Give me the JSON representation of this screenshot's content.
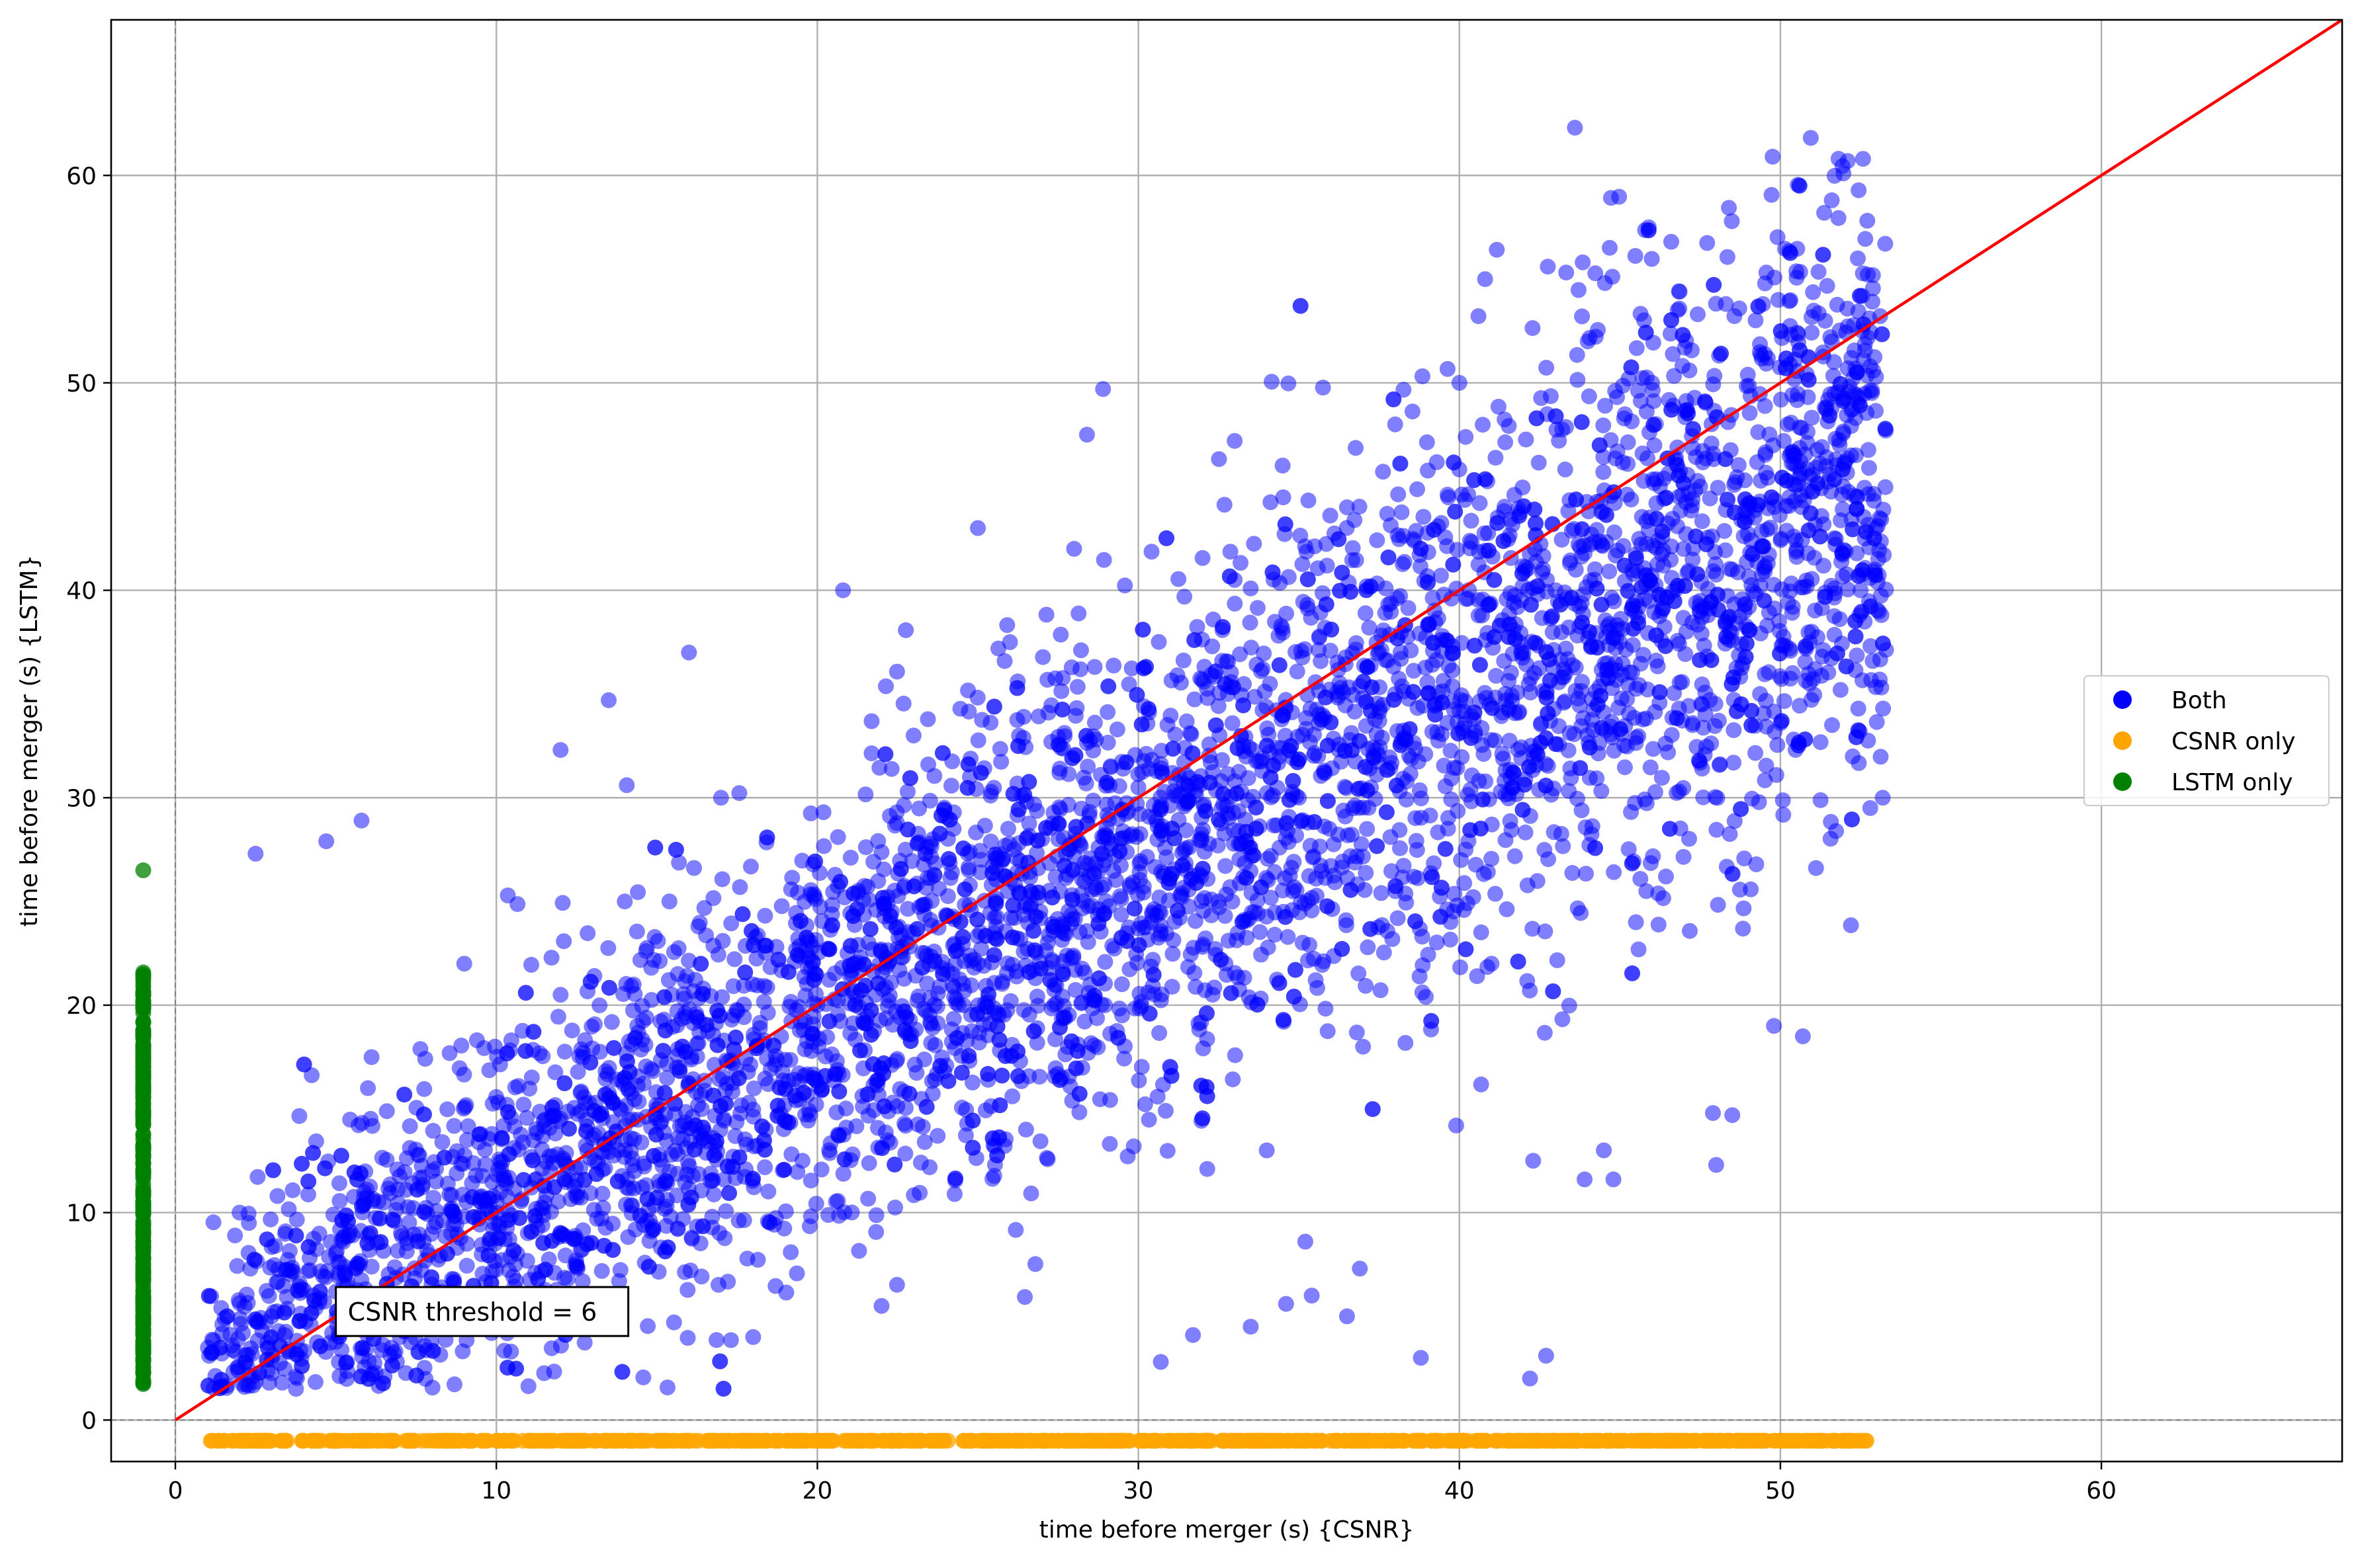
{
  "chart_data": {
    "type": "scatter",
    "xlabel": "time before merger (s) {CSNR}",
    "ylabel": "time before merger (s) {LSTM}",
    "xlim": [
      -2,
      67.5
    ],
    "ylim": [
      -2,
      67.5
    ],
    "xticks": [
      0,
      10,
      20,
      30,
      40,
      50,
      60
    ],
    "yticks": [
      0,
      10,
      20,
      30,
      40,
      50,
      60
    ],
    "grid": true,
    "legend_position": "right",
    "reference_lines": {
      "x_dashed": 0,
      "y_dashed": 0,
      "identity_line_color": "#ff0000"
    },
    "annotation": {
      "text": "CSNR threshold = 6",
      "x": 5,
      "y": 5.2
    },
    "series": [
      {
        "name": "Both",
        "color": "#0000ff",
        "alpha": 0.5,
        "count": 5200,
        "x_range": [
          1,
          53.3
        ],
        "y_range": [
          1.5,
          62.3
        ],
        "trend": "y ≈ x with spread",
        "points": [
          [
            43.6,
            62.3
          ],
          [
            51.6,
            58.8
          ],
          [
            45.9,
            57.5
          ],
          [
            46.6,
            56.8
          ],
          [
            40.8,
            55.0
          ],
          [
            28.9,
            49.7
          ],
          [
            28.4,
            47.5
          ],
          [
            33.0,
            47.2
          ],
          [
            25.0,
            43.0
          ],
          [
            20.8,
            40.0
          ],
          [
            16.0,
            37.0
          ],
          [
            12.0,
            32.3
          ],
          [
            13.5,
            34.7
          ],
          [
            2.5,
            27.3
          ],
          [
            5.8,
            28.9
          ],
          [
            4.7,
            27.9
          ],
          [
            49.8,
            19.0
          ],
          [
            50.7,
            18.5
          ],
          [
            48.5,
            14.7
          ],
          [
            47.9,
            14.8
          ],
          [
            48.0,
            12.3
          ],
          [
            42.3,
            12.5
          ],
          [
            43.9,
            11.6
          ],
          [
            44.5,
            13.0
          ],
          [
            44.8,
            11.6
          ],
          [
            38.8,
            3.0
          ],
          [
            42.2,
            2.0
          ],
          [
            42.7,
            3.1
          ],
          [
            30.7,
            2.8
          ],
          [
            31.7,
            4.1
          ],
          [
            33.5,
            4.5
          ],
          [
            34.6,
            5.6
          ],
          [
            35.4,
            6.0
          ],
          [
            36.5,
            5.0
          ],
          [
            36.9,
            7.3
          ],
          [
            35.2,
            8.6
          ],
          [
            39.9,
            14.2
          ],
          [
            20.9,
            14.1
          ],
          [
            26.5,
            14.0
          ],
          [
            27.0,
            28.0
          ],
          [
            30.0,
            30.5
          ],
          [
            32.5,
            25.0
          ],
          [
            35.0,
            30.0
          ],
          [
            38.0,
            35.0
          ],
          [
            40.5,
            33.0
          ],
          [
            43.0,
            40.0
          ],
          [
            45.0,
            37.5
          ],
          [
            47.5,
            45.0
          ],
          [
            48.5,
            41.0
          ],
          [
            50.5,
            46.0
          ],
          [
            52.5,
            40.0
          ],
          [
            53.2,
            34.3
          ],
          [
            52.8,
            29.5
          ],
          [
            51.6,
            52.0
          ],
          [
            52.1,
            50.7
          ],
          [
            48.3,
            53.8
          ],
          [
            46.8,
            53.5
          ],
          [
            10.0,
            10.0
          ],
          [
            15.0,
            15.0
          ],
          [
            20.0,
            20.0
          ],
          [
            25.0,
            22.0
          ],
          [
            12.0,
            20.5
          ],
          [
            8.0,
            12.0
          ],
          [
            5.0,
            8.0
          ],
          [
            3.0,
            5.0
          ],
          [
            2.0,
            10.0
          ],
          [
            22.0,
            5.5
          ],
          [
            18.0,
            4.0
          ],
          [
            6.0,
            16.0
          ],
          [
            9.0,
            22.0
          ],
          [
            14.0,
            25.0
          ],
          [
            17.0,
            30.0
          ],
          [
            23.0,
            33.0
          ],
          [
            26.0,
            37.5
          ],
          [
            28.0,
            42.0
          ],
          [
            33.0,
            40.5
          ],
          [
            36.5,
            44.0
          ],
          [
            38.0,
            48.0
          ],
          [
            40.0,
            50.0
          ],
          [
            44.0,
            52.0
          ],
          [
            46.0,
            50.0
          ],
          [
            37.0,
            18.0
          ],
          [
            41.0,
            22.0
          ],
          [
            45.5,
            24.0
          ],
          [
            34.0,
            13.0
          ],
          [
            31.0,
            17.0
          ]
        ]
      },
      {
        "name": "CSNR only",
        "color": "#ffa500",
        "alpha": 0.75,
        "count": 900,
        "y_constant": -1,
        "x_range": [
          1,
          52.7
        ]
      },
      {
        "name": "LSTM only",
        "color": "#008000",
        "alpha": 0.75,
        "count": 260,
        "x_constant": -1,
        "y_range": [
          1.7,
          21.6
        ],
        "outliers": [
          26.5
        ]
      }
    ]
  }
}
